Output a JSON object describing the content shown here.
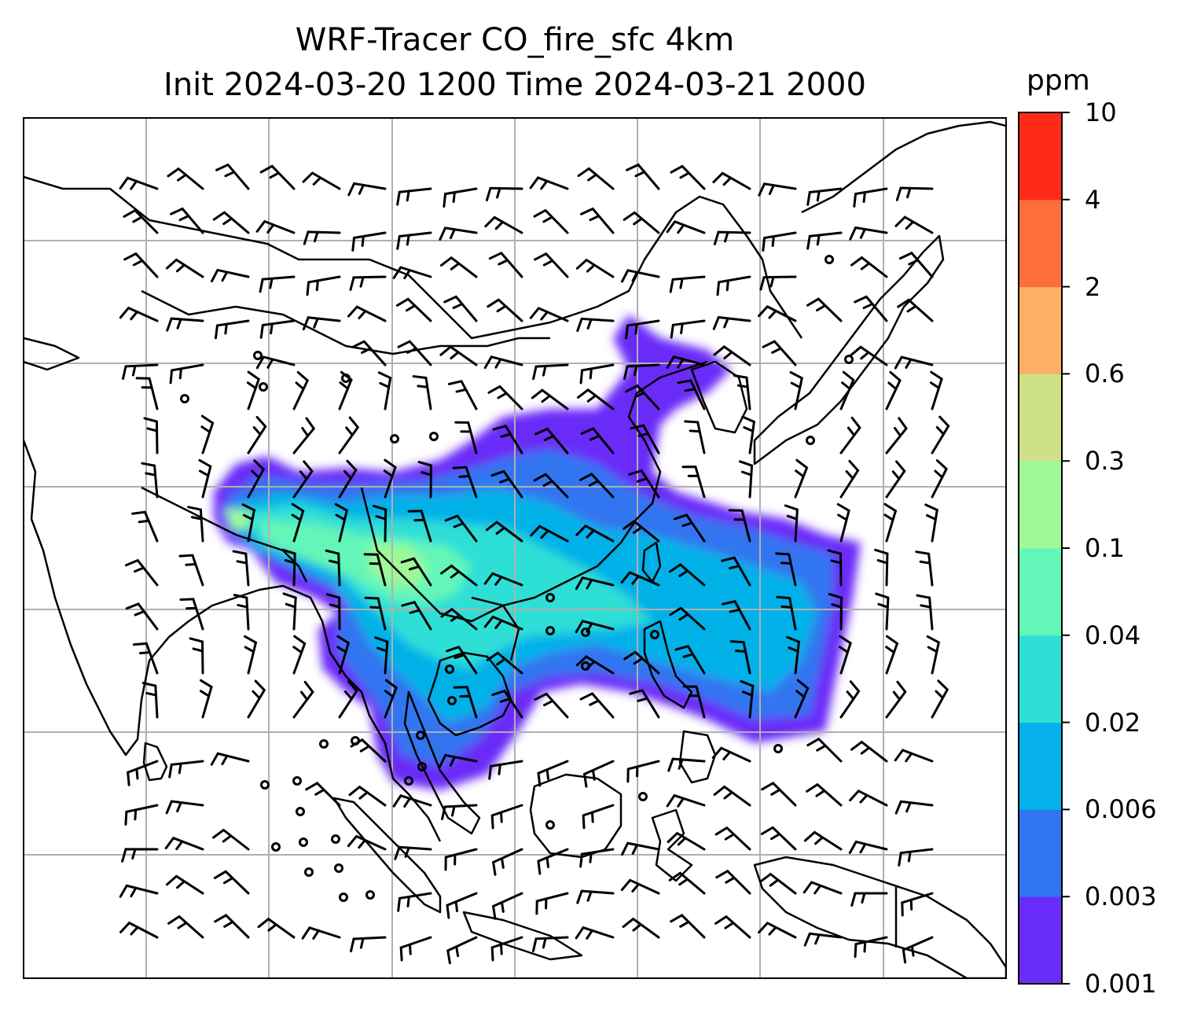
{
  "title": {
    "line1": "WRF-Tracer CO_fire_sfc 4km",
    "line2": "Init 2024-03-20 1200 Time 2024-03-21 2000"
  },
  "colorbar": {
    "unit": "ppm",
    "levels": [
      "0.001",
      "0.003",
      "0.006",
      "0.02",
      "0.04",
      "0.1",
      "0.3",
      "0.6",
      "2",
      "4",
      "10"
    ],
    "colors": [
      "#6a2cf8",
      "#3175f0",
      "#05b1e8",
      "#2fdfd6",
      "#63f6b8",
      "#9ef896",
      "#cfe186",
      "#fdaf64",
      "#fe6d3c",
      "#ff2b19"
    ]
  },
  "map": {
    "coastline_color": "#000000",
    "grid_color": "#b0b0b0",
    "barb_color": "#000000"
  }
}
